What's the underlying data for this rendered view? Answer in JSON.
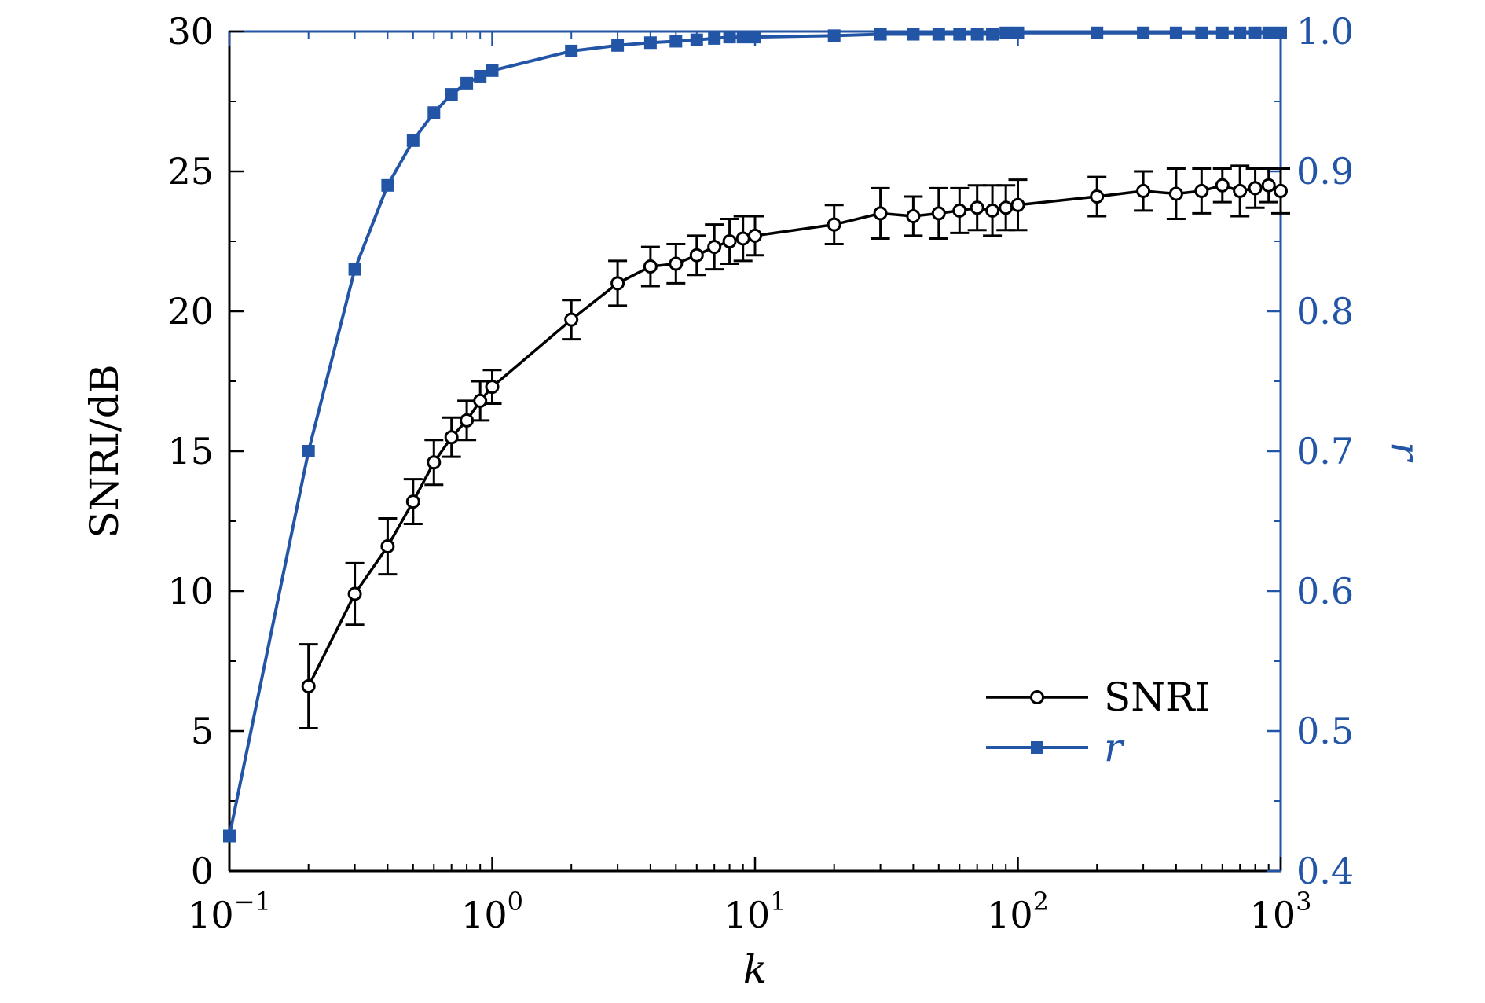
{
  "chart_data": {
    "type": "line",
    "xlabel": "k",
    "ylabel_left": "SNRI/dB",
    "ylabel_right": "r",
    "x_scale": "log",
    "xlim": [
      0.1,
      1000
    ],
    "ylim_left": [
      0,
      30
    ],
    "ylim_right": [
      0.4,
      1.0
    ],
    "x_ticks": [
      {
        "value": 0.1,
        "base": "10",
        "exp": "−1"
      },
      {
        "value": 1,
        "base": "10",
        "exp": "0"
      },
      {
        "value": 10,
        "base": "10",
        "exp": "1"
      },
      {
        "value": 100,
        "base": "10",
        "exp": "2"
      },
      {
        "value": 1000,
        "base": "10",
        "exp": "3"
      }
    ],
    "y_left_ticks": [
      0,
      5,
      10,
      15,
      20,
      25,
      30
    ],
    "y_left_tick_labels": [
      "0",
      "5",
      "10",
      "15",
      "20",
      "25",
      "30"
    ],
    "y_right_ticks": [
      0.4,
      0.5,
      0.6,
      0.7,
      0.8,
      0.9,
      1.0
    ],
    "y_right_tick_labels": [
      "0.4",
      "0.5",
      "0.6",
      "0.7",
      "0.8",
      "0.9",
      "1.0"
    ],
    "legend_position": "bottom-right",
    "grid": false,
    "series": [
      {
        "name": "SNRI",
        "axis": "left",
        "color": "#000000",
        "marker": "open-circle",
        "x": [
          0.2,
          0.3,
          0.4,
          0.5,
          0.6,
          0.7,
          0.8,
          0.9,
          1,
          2,
          3,
          4,
          5,
          6,
          7,
          8,
          9,
          10,
          20,
          30,
          40,
          50,
          60,
          70,
          80,
          90,
          100,
          200,
          300,
          400,
          500,
          600,
          700,
          800,
          900,
          1000
        ],
        "y": [
          6.6,
          9.9,
          11.6,
          13.2,
          14.6,
          15.5,
          16.1,
          16.8,
          17.3,
          19.7,
          21.0,
          21.6,
          21.7,
          22.0,
          22.3,
          22.5,
          22.6,
          22.7,
          23.1,
          23.5,
          23.4,
          23.5,
          23.6,
          23.7,
          23.6,
          23.7,
          23.8,
          24.1,
          24.3,
          24.2,
          24.3,
          24.5,
          24.3,
          24.4,
          24.5,
          24.3
        ],
        "error": [
          1.5,
          1.1,
          1.0,
          0.8,
          0.8,
          0.7,
          0.7,
          0.7,
          0.6,
          0.7,
          0.8,
          0.7,
          0.7,
          0.7,
          0.8,
          0.8,
          0.8,
          0.7,
          0.7,
          0.9,
          0.7,
          0.9,
          0.8,
          0.8,
          0.9,
          0.8,
          0.9,
          0.7,
          0.7,
          0.9,
          0.8,
          0.6,
          0.9,
          0.7,
          0.6,
          0.8
        ]
      },
      {
        "name": "r",
        "axis": "right",
        "color": "#2355a7",
        "marker": "filled-square",
        "x": [
          0.1,
          0.2,
          0.3,
          0.4,
          0.5,
          0.6,
          0.7,
          0.8,
          0.9,
          1,
          2,
          3,
          4,
          5,
          6,
          7,
          8,
          9,
          10,
          20,
          30,
          40,
          50,
          60,
          70,
          80,
          90,
          100,
          200,
          300,
          400,
          500,
          600,
          700,
          800,
          900,
          1000
        ],
        "y": [
          0.425,
          0.7,
          0.83,
          0.89,
          0.922,
          0.942,
          0.955,
          0.963,
          0.968,
          0.972,
          0.986,
          0.99,
          0.992,
          0.993,
          0.994,
          0.995,
          0.996,
          0.996,
          0.996,
          0.997,
          0.998,
          0.998,
          0.998,
          0.998,
          0.998,
          0.998,
          0.999,
          0.999,
          0.999,
          0.999,
          0.999,
          0.999,
          0.999,
          0.999,
          0.999,
          0.999,
          0.999
        ]
      }
    ]
  }
}
